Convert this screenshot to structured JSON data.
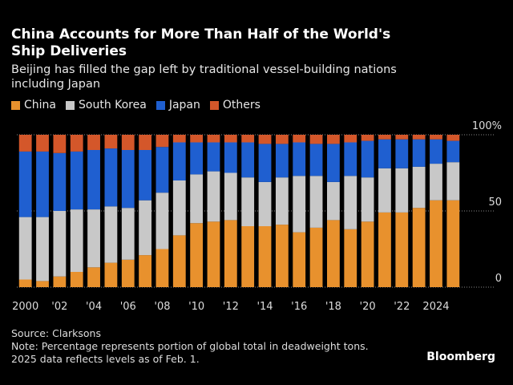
{
  "chart_data": {
    "type": "stacked-bar",
    "title": "China Accounts for More Than Half of the World's Ship Deliveries",
    "subtitle": "Beijing has filled the gap left by traditional vessel-building nations including Japan",
    "categories": [
      "2000",
      null,
      "'02",
      null,
      "'04",
      null,
      "'06",
      null,
      "'08",
      null,
      "'10",
      null,
      "'12",
      null,
      "'14",
      null,
      "'16",
      null,
      "'18",
      null,
      "'20",
      null,
      "'22",
      null,
      "2024",
      null
    ],
    "series": [
      {
        "name": "China",
        "color": "#e8912d",
        "values": [
          5,
          4,
          7,
          10,
          13,
          16,
          18,
          21,
          25,
          34,
          42,
          43,
          44,
          40,
          40,
          41,
          36,
          39,
          44,
          38,
          43,
          49,
          49,
          52,
          57,
          57
        ]
      },
      {
        "name": "South Korea",
        "color": "#c8c8c8",
        "values": [
          41,
          42,
          43,
          41,
          38,
          37,
          34,
          36,
          37,
          36,
          32,
          33,
          31,
          32,
          29,
          31,
          37,
          34,
          25,
          35,
          29,
          29,
          29,
          27,
          24,
          25
        ]
      },
      {
        "name": "Japan",
        "color": "#1f5fd0",
        "values": [
          43,
          43,
          38,
          38,
          39,
          38,
          38,
          33,
          30,
          25,
          21,
          19,
          20,
          23,
          25,
          22,
          22,
          21,
          25,
          22,
          24,
          19,
          19,
          18,
          16,
          14
        ]
      },
      {
        "name": "Others",
        "color": "#d4572a",
        "values": [
          11,
          11,
          12,
          11,
          10,
          9,
          10,
          10,
          8,
          5,
          5,
          5,
          5,
          5,
          6,
          6,
          5,
          6,
          6,
          5,
          4,
          3,
          3,
          3,
          3,
          4
        ]
      }
    ],
    "ylim": [
      0,
      100
    ],
    "yticks": [
      0,
      50,
      {
        "value": 100,
        "label": "100%"
      }
    ],
    "grid": true,
    "source": "Source: Clarksons",
    "notes": [
      "Note: Percentage represents portion of global total in deadweight tons.",
      "2025 data reflects levels as of Feb. 1."
    ],
    "brand": "Bloomberg"
  }
}
